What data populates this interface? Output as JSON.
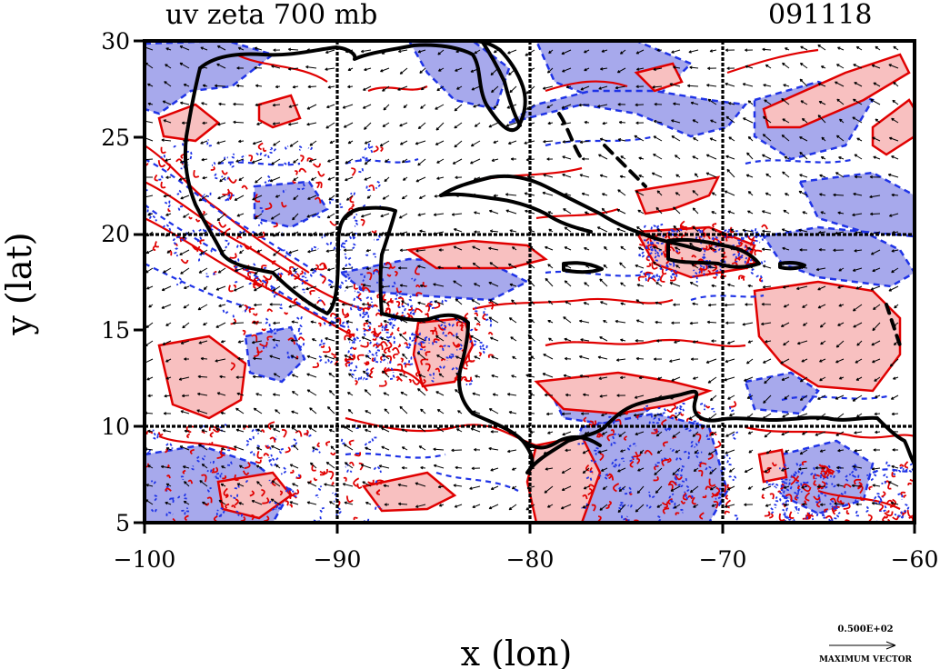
{
  "header": {
    "title": "uv zeta 700 mb",
    "date": "091118"
  },
  "axes": {
    "xlabel": "x (lon)",
    "ylabel": "y (lat)",
    "x_ticks": [
      "−100",
      "−90",
      "−80",
      "−70",
      "−60"
    ],
    "y_ticks": [
      "30",
      "25",
      "20",
      "15",
      "10",
      "5"
    ],
    "xlim": [
      -100,
      -60
    ],
    "ylim": [
      5,
      30
    ],
    "grid_lon": [
      -90,
      -80,
      -70
    ],
    "grid_lat": [
      10,
      20
    ]
  },
  "legend": {
    "vector_value": "0.500E+02",
    "vector_label": "MAXIMUM VECTOR"
  },
  "style": {
    "positive_contour": "#e00000",
    "positive_fill": "#f8c0c0",
    "negative_contour": "#1f33e6",
    "negative_fill": "#a7a9ec",
    "coastline": "#000000"
  }
}
